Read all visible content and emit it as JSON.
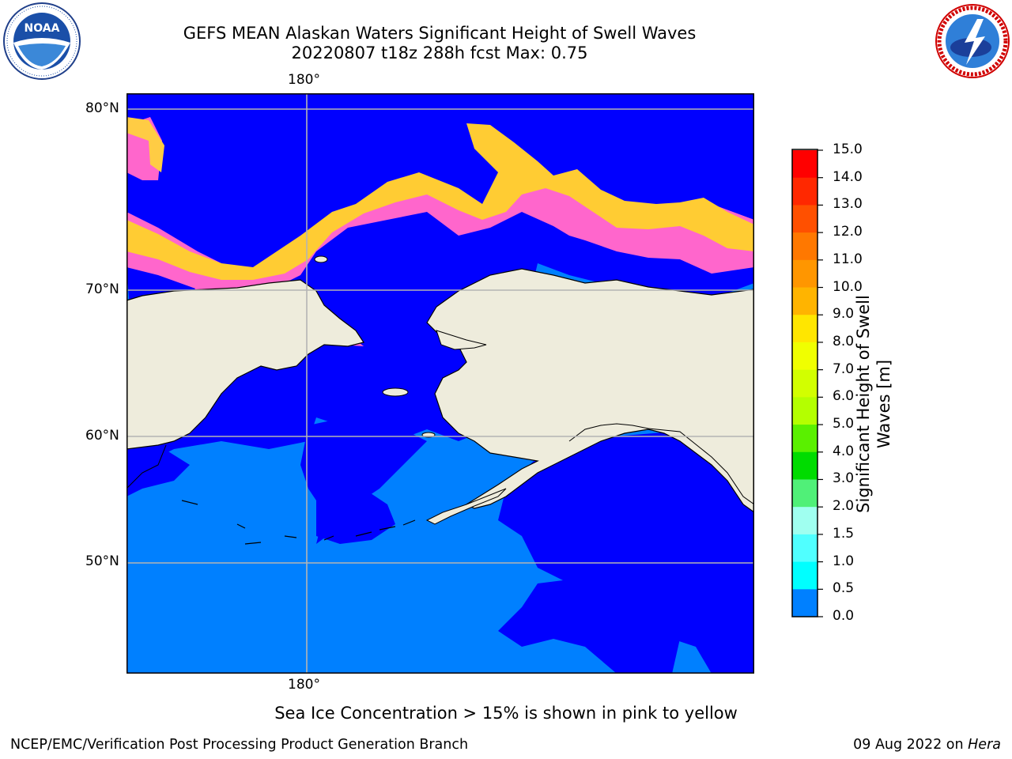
{
  "header": {
    "title_line1": "GEFS MEAN Alaskan Waters Significant Height of Swell Waves",
    "title_line2": "20220807 t18z 288h fcst    Max: 0.75"
  },
  "logos": {
    "left": {
      "name": "NOAA",
      "ring_text": "NATIONAL OCEANIC AND ATMOSPHERIC ADMINISTRATION · U.S. DEPARTMENT OF COMMERCE"
    },
    "right": {
      "name": "NATIONAL WEATHER SERVICE"
    }
  },
  "map": {
    "lat_labels": [
      "80°N",
      "70°N",
      "60°N",
      "50°N"
    ],
    "lon_label_top": "180°",
    "lon_label_bottom": "180°",
    "land_color": "#eeecdc",
    "grid_color": "#b4b4b4"
  },
  "colorbar": {
    "label_line1": "Significant Height of Swell",
    "label_line2": "Waves [m]",
    "ticks": [
      "15.0",
      "14.0",
      "13.0",
      "12.0",
      "11.0",
      "10.0",
      "9.0",
      "8.0",
      "7.0",
      "6.0",
      "5.0",
      "4.0",
      "3.0",
      "2.0",
      "1.5",
      "1.0",
      "0.5",
      "0.0"
    ],
    "colors": [
      "#ff0000",
      "#ff2800",
      "#ff5000",
      "#ff7800",
      "#ff9600",
      "#ffb400",
      "#ffe600",
      "#f0ff00",
      "#d2ff00",
      "#b4ff00",
      "#5af000",
      "#00dc00",
      "#50f078",
      "#a0fff0",
      "#50ffff",
      "#00ffff",
      "#0080ff",
      "#0000ff"
    ]
  },
  "caption": "Sea Ice Concentration > 15% is shown in pink to yellow",
  "footer": {
    "left": "NCEP/EMC/Verification Post Processing Product Generation Branch",
    "right_date": "09 Aug 2022 on ",
    "right_host": "Hera"
  }
}
